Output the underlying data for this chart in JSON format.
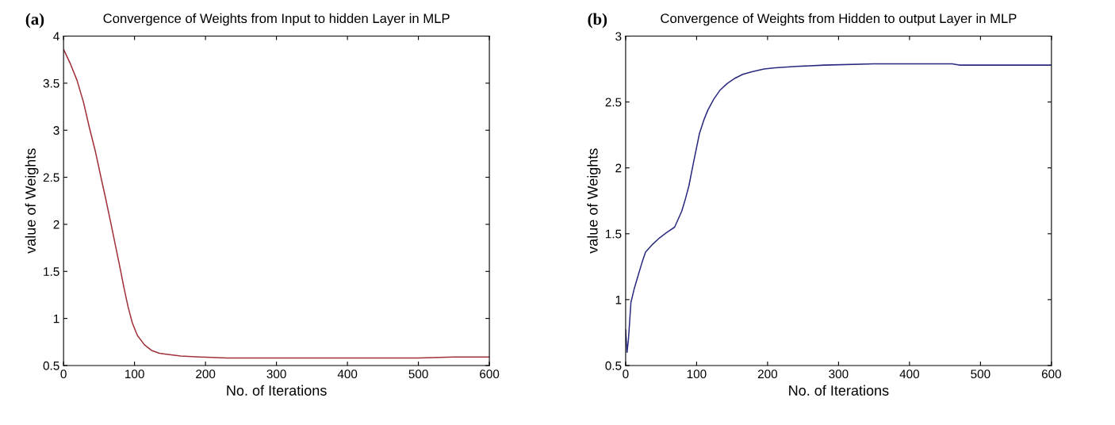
{
  "chart_data": [
    {
      "type": "line",
      "title": "Convergence of Weights from Input to hidden Layer in MLP",
      "xlabel": "No. of Iterations",
      "ylabel": "value of Weights",
      "annotations": [
        "(a)"
      ],
      "series": [
        {
          "color": "#a0303a",
          "x": [
            0,
            10,
            19,
            28,
            36,
            45,
            53,
            60,
            67,
            73,
            79,
            85,
            91,
            97,
            104,
            114,
            124,
            135,
            145,
            165,
            192,
            230,
            300,
            400,
            500,
            550,
            600
          ],
          "values": [
            3.86,
            3.7,
            3.53,
            3.3,
            3.04,
            2.77,
            2.49,
            2.25,
            2.0,
            1.78,
            1.56,
            1.33,
            1.12,
            0.95,
            0.82,
            0.72,
            0.66,
            0.63,
            0.62,
            0.6,
            0.59,
            0.58,
            0.58,
            0.58,
            0.58,
            0.59,
            0.59
          ]
        }
      ],
      "xlim": [
        0,
        600
      ],
      "ylim": [
        0.5,
        4
      ],
      "xticks": [
        0,
        100,
        200,
        300,
        400,
        500,
        600
      ],
      "yticks": [
        0.5,
        1,
        1.5,
        2,
        2.5,
        3,
        3.5,
        4
      ],
      "grid": false,
      "legend": false
    },
    {
      "type": "line",
      "title": "Convergence of Weights from Hidden to output Layer in MLP",
      "xlabel": "No. of Iterations",
      "ylabel": "value of Weights",
      "annotations": [
        "(b)"
      ],
      "series": [
        {
          "color": "#2a2a80",
          "x": [
            0,
            2,
            4,
            7.5,
            12,
            18,
            23,
            28,
            38,
            48,
            58,
            69,
            79,
            84,
            89,
            96,
            104,
            110,
            116,
            124,
            133,
            143,
            154,
            165,
            178,
            195,
            211,
            240,
            280,
            350,
            460,
            470,
            600
          ],
          "values": [
            0.77,
            0.6,
            0.7,
            0.98,
            1.08,
            1.19,
            1.28,
            1.36,
            1.42,
            1.47,
            1.51,
            1.55,
            1.67,
            1.76,
            1.86,
            2.05,
            2.26,
            2.36,
            2.44,
            2.52,
            2.59,
            2.64,
            2.68,
            2.71,
            2.73,
            2.75,
            2.76,
            2.77,
            2.78,
            2.79,
            2.79,
            2.78,
            2.78
          ]
        }
      ],
      "xlim": [
        0,
        600
      ],
      "ylim": [
        0.5,
        3
      ],
      "xticks": [
        0,
        100,
        200,
        300,
        400,
        500,
        600
      ],
      "yticks": [
        0.5,
        1,
        1.5,
        2,
        2.5,
        3
      ],
      "grid": false,
      "legend": false
    }
  ]
}
